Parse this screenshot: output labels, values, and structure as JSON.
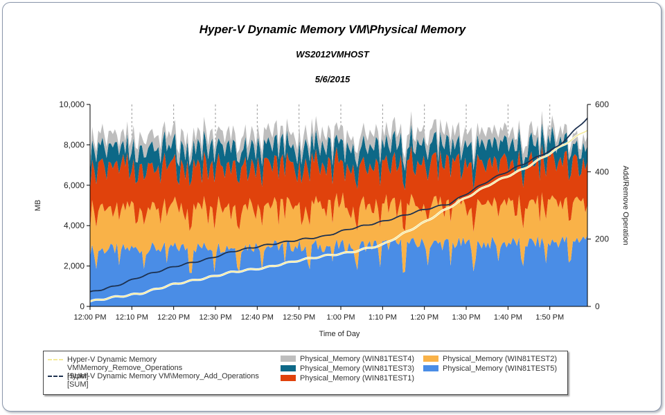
{
  "chart_data": {
    "type": "area",
    "title": "Hyper-V Dynamic Memory VM\\Physical Memory",
    "subtitle": "WS2012VMHOST",
    "date": "5/6/2015",
    "xlabel": "Time of Day",
    "ylabel": "MB",
    "y2label": "Add/Remove Operation",
    "xlim": [
      "12:00 PM",
      "1:59 PM"
    ],
    "ylim": [
      0,
      10000
    ],
    "y2lim": [
      0,
      600
    ],
    "x_ticks": [
      "12:00 PM",
      "12:10 PM",
      "12:20 PM",
      "12:30 PM",
      "12:40 PM",
      "12:50 PM",
      "1:00 PM",
      "1:10 PM",
      "1:20 PM",
      "1:30 PM",
      "1:40 PM",
      "1:50 PM"
    ],
    "y_ticks": [
      "0",
      "2,000",
      "4,000",
      "6,000",
      "8,000",
      "10,000"
    ],
    "y2_ticks": [
      "0",
      "200",
      "400",
      "600"
    ],
    "x_minutes": [
      0,
      10,
      20,
      30,
      40,
      50,
      60,
      70,
      80,
      90,
      100,
      110,
      119
    ],
    "stacked_series": [
      {
        "name": "Physical_Memory (WIN81TEST5)",
        "color": "#4a8de6",
        "values": [
          2800,
          2850,
          2900,
          2950,
          3000,
          3000,
          3000,
          3050,
          3100,
          3100,
          3150,
          3150,
          3400
        ]
      },
      {
        "name": "Physical_Memory (WIN81TEST2)",
        "color": "#f9b248",
        "values": [
          2100,
          2050,
          2100,
          2100,
          2100,
          2100,
          2100,
          2050,
          2000,
          2050,
          2050,
          2050,
          2000
        ]
      },
      {
        "name": "Physical_Memory (WIN81TEST1)",
        "color": "#e0420c",
        "values": [
          2200,
          2200,
          2150,
          2150,
          2150,
          2150,
          2150,
          2150,
          2200,
          2150,
          2150,
          2150,
          2050
        ]
      },
      {
        "name": "Physical_Memory (WIN81TEST3)",
        "color": "#0d6887",
        "values": [
          1000,
          1000,
          1000,
          1000,
          1000,
          1000,
          1000,
          1000,
          1000,
          1000,
          1000,
          1000,
          800
        ]
      },
      {
        "name": "Physical_Memory (WIN81TEST4)",
        "color": "#bebebe",
        "values": [
          600,
          650,
          650,
          650,
          650,
          650,
          650,
          650,
          650,
          650,
          600,
          550,
          450
        ]
      }
    ],
    "line_series": [
      {
        "name": "Hyper-V Dynamic Memory VM\\Memory_Remove_Operations",
        "name2": "[SUM]",
        "color": "#f4ea9a",
        "axis": "y2",
        "values": [
          15,
          28,
          38,
          66,
          85,
          102,
          115,
          137,
          150,
          160,
          183,
          250,
          295,
          365,
          410,
          470,
          525
        ]
      },
      {
        "name": "Hyper-V Dynamic Memory VM\\Memory_Add_Operations",
        "name2": "[SUM]",
        "color": "#1d3150",
        "axis": "y2",
        "values": [
          42,
          60,
          88,
          118,
          140,
          163,
          182,
          198,
          208,
          230,
          252,
          288,
          305,
          378,
          425,
          475,
          560
        ]
      }
    ],
    "line_x_minutes": [
      0,
      6,
      12,
      20,
      28,
      34,
      42,
      50,
      56,
      62,
      70,
      80,
      86,
      96,
      104,
      112,
      119
    ]
  }
}
